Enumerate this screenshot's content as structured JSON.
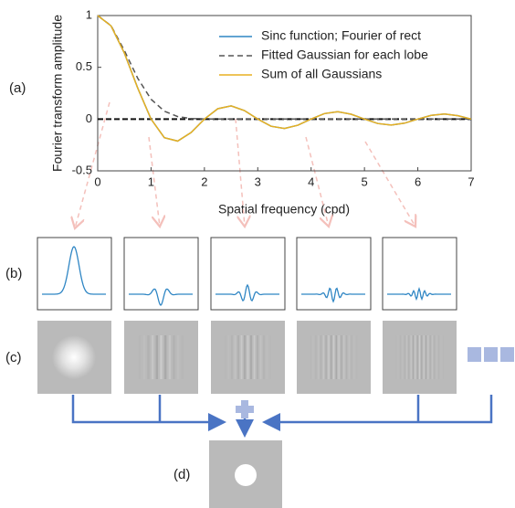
{
  "chart_data": {
    "type": "line",
    "x_label": "Spatial frequency (cpd)",
    "y_label": "Fourier transform amplitude",
    "x": [
      0,
      0.25,
      0.5,
      0.75,
      1,
      1.25,
      1.5,
      1.75,
      2,
      2.25,
      2.5,
      2.75,
      3,
      3.25,
      3.5,
      3.75,
      4,
      4.25,
      4.5,
      4.75,
      5,
      5.25,
      5.5,
      5.75,
      6,
      6.25,
      6.5,
      6.75,
      7
    ],
    "series": [
      {
        "name": "Sinc function; Fourier of rect",
        "color": "#2f86c4",
        "dash": false,
        "values": [
          1,
          0.9,
          0.637,
          0.3,
          0,
          -0.18,
          -0.212,
          -0.129,
          0,
          0.1,
          0.127,
          0.082,
          0,
          -0.069,
          -0.091,
          -0.06,
          0,
          0.053,
          0.071,
          0.047,
          0,
          -0.043,
          -0.058,
          -0.039,
          0,
          0.036,
          0.049,
          0.033,
          0
        ]
      },
      {
        "name": "Fitted Gaussian for each lobe",
        "color": "#555555",
        "dash": true,
        "values": [
          1,
          0.902,
          0.662,
          0.395,
          0.192,
          0.076,
          0.024,
          0.006,
          0.001,
          0,
          0,
          0,
          0,
          0,
          0,
          0,
          0,
          0,
          0,
          0,
          0,
          0,
          0,
          0,
          0,
          0,
          0,
          0,
          0
        ]
      },
      {
        "name": "Sum of all Gaussians",
        "color": "#e8b020",
        "dash": false,
        "values": [
          1,
          0.9,
          0.637,
          0.3,
          0,
          -0.18,
          -0.212,
          -0.129,
          0,
          0.1,
          0.127,
          0.082,
          0,
          -0.069,
          -0.091,
          -0.06,
          0,
          0.053,
          0.071,
          0.047,
          0,
          -0.043,
          -0.058,
          -0.039,
          0,
          0.036,
          0.049,
          0.033,
          0
        ]
      }
    ],
    "xlim": [
      0,
      7
    ],
    "xticks": [
      0,
      1,
      2,
      3,
      4,
      5,
      6,
      7
    ],
    "ylim": [
      -0.5,
      1
    ],
    "yticks": [
      -0.5,
      0,
      0.5,
      1
    ],
    "legend": "upper right",
    "panel_labels": [
      "(a)",
      "(b)",
      "(c)",
      "(d)"
    ]
  }
}
